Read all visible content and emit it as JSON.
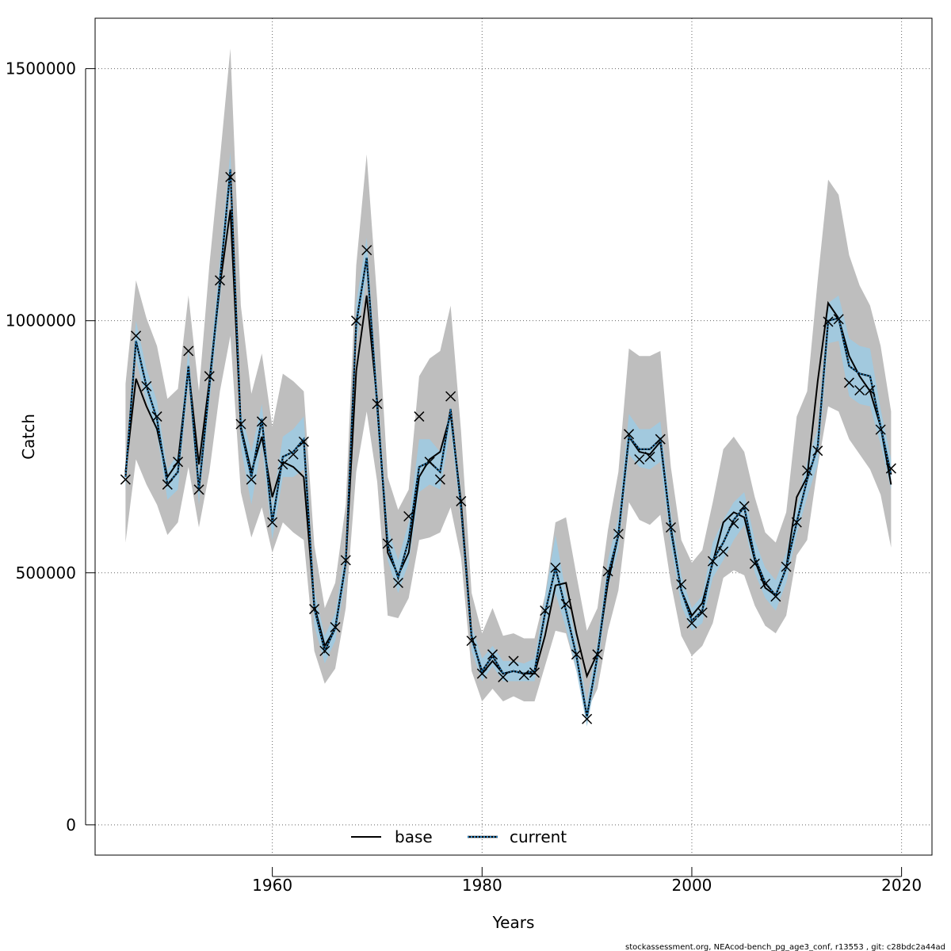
{
  "chart_data": {
    "type": "line",
    "xlabel": "Years",
    "ylabel": "Catch",
    "xlim": [
      1943.1,
      2022.9
    ],
    "ylim": [
      -60000,
      1600000
    ],
    "x_ticks": [
      1960,
      1980,
      2000,
      2020
    ],
    "y_ticks": [
      0,
      500000,
      1000000,
      1500000
    ],
    "x_tick_labels": [
      "1960",
      "1980",
      "2000",
      "2020"
    ],
    "y_tick_labels": [
      "0",
      "500000",
      "1000000",
      "1500000"
    ],
    "grid": true,
    "legend": {
      "placement": "bottom-center",
      "entries": [
        {
          "label": "base",
          "color": "#000000",
          "style": "solid"
        },
        {
          "label": "current",
          "color": "#1f77b4",
          "style": "dotted"
        }
      ]
    },
    "footer": "stockassessment.org, NEAcod-bench_pg_age3_conf, r13553 , git: c28bdc2a44ad",
    "colors": {
      "base_band": "#bebebe",
      "current_band": "#9ecae1",
      "current_line": "#1f77b4",
      "base_line": "#000000",
      "observed_marker": "#000000"
    },
    "years": [
      1946,
      1947,
      1948,
      1949,
      1950,
      1951,
      1952,
      1953,
      1954,
      1955,
      1956,
      1957,
      1958,
      1959,
      1960,
      1961,
      1962,
      1963,
      1964,
      1965,
      1966,
      1967,
      1968,
      1969,
      1970,
      1971,
      1972,
      1973,
      1974,
      1975,
      1976,
      1977,
      1978,
      1979,
      1980,
      1981,
      1982,
      1983,
      1984,
      1985,
      1986,
      1987,
      1988,
      1989,
      1990,
      1991,
      1992,
      1993,
      1994,
      1995,
      1996,
      1997,
      1998,
      1999,
      2000,
      2001,
      2002,
      2003,
      2004,
      2005,
      2006,
      2007,
      2008,
      2009,
      2010,
      2011,
      2012,
      2013,
      2014,
      2015,
      2016,
      2017,
      2018,
      2019
    ],
    "series": [
      {
        "name": "base",
        "values": [
          700000,
          885000,
          830000,
          785000,
          690000,
          720000,
          905000,
          715000,
          880000,
          1070000,
          1220000,
          790000,
          700000,
          770000,
          650000,
          720000,
          710000,
          690000,
          435000,
          355000,
          390000,
          520000,
          900000,
          1050000,
          840000,
          540000,
          495000,
          540000,
          690000,
          725000,
          740000,
          815000,
          640000,
          375000,
          300000,
          325000,
          300000,
          305000,
          300000,
          300000,
          375000,
          475000,
          480000,
          380000,
          295000,
          340000,
          480000,
          575000,
          770000,
          740000,
          735000,
          760000,
          590000,
          465000,
          415000,
          440000,
          520000,
          600000,
          620000,
          610000,
          525000,
          470000,
          455000,
          510000,
          650000,
          690000,
          880000,
          1035000,
          1005000,
          930000,
          890000,
          860000,
          790000,
          675000
        ],
        "lower": [
          560000,
          725000,
          675000,
          635000,
          575000,
          600000,
          710000,
          590000,
          700000,
          860000,
          970000,
          660000,
          570000,
          630000,
          540000,
          600000,
          580000,
          565000,
          345000,
          280000,
          310000,
          430000,
          700000,
          820000,
          680000,
          415000,
          410000,
          450000,
          565000,
          570000,
          580000,
          630000,
          530000,
          305000,
          245000,
          270000,
          245000,
          255000,
          245000,
          245000,
          315000,
          385000,
          380000,
          305000,
          225000,
          270000,
          385000,
          465000,
          640000,
          605000,
          595000,
          615000,
          480000,
          375000,
          335000,
          355000,
          400000,
          490000,
          505000,
          495000,
          435000,
          395000,
          380000,
          415000,
          535000,
          565000,
          710000,
          830000,
          820000,
          765000,
          735000,
          705000,
          655000,
          550000
        ],
        "upper": [
          875000,
          1080000,
          1005000,
          950000,
          845000,
          865000,
          1050000,
          860000,
          1110000,
          1320000,
          1540000,
          1030000,
          855000,
          935000,
          790000,
          895000,
          880000,
          860000,
          555000,
          430000,
          480000,
          635000,
          1110000,
          1330000,
          1040000,
          690000,
          625000,
          665000,
          890000,
          925000,
          940000,
          1030000,
          780000,
          460000,
          380000,
          430000,
          375000,
          380000,
          370000,
          370000,
          455000,
          600000,
          610000,
          495000,
          385000,
          430000,
          585000,
          700000,
          945000,
          930000,
          930000,
          940000,
          710000,
          565000,
          520000,
          545000,
          640000,
          745000,
          770000,
          740000,
          650000,
          580000,
          560000,
          620000,
          810000,
          860000,
          1080000,
          1280000,
          1250000,
          1130000,
          1070000,
          1030000,
          950000,
          820000
        ]
      },
      {
        "name": "current",
        "values": [
          690000,
          960000,
          870000,
          805000,
          675000,
          700000,
          910000,
          665000,
          870000,
          1080000,
          1300000,
          785000,
          690000,
          805000,
          600000,
          730000,
          740000,
          765000,
          430000,
          345000,
          390000,
          520000,
          995000,
          1125000,
          830000,
          555000,
          490000,
          565000,
          710000,
          720000,
          700000,
          825000,
          630000,
          370000,
          305000,
          335000,
          300000,
          305000,
          300000,
          305000,
          420000,
          510000,
          425000,
          335000,
          215000,
          335000,
          495000,
          575000,
          770000,
          745000,
          745000,
          765000,
          585000,
          465000,
          405000,
          425000,
          525000,
          560000,
          605000,
          630000,
          530000,
          480000,
          455000,
          510000,
          600000,
          685000,
          750000,
          1000000,
          1005000,
          910000,
          895000,
          890000,
          790000,
          695000
        ],
        "lower": [
          665000,
          925000,
          840000,
          775000,
          645000,
          665000,
          875000,
          635000,
          835000,
          1040000,
          1265000,
          750000,
          635000,
          755000,
          565000,
          690000,
          690000,
          705000,
          395000,
          320000,
          365000,
          490000,
          955000,
          1085000,
          790000,
          525000,
          460000,
          520000,
          660000,
          675000,
          665000,
          785000,
          605000,
          345000,
          285000,
          315000,
          285000,
          285000,
          285000,
          285000,
          390000,
          460000,
          390000,
          305000,
          195000,
          305000,
          470000,
          545000,
          735000,
          710000,
          705000,
          720000,
          555000,
          435000,
          385000,
          400000,
          490000,
          525000,
          565000,
          595000,
          500000,
          450000,
          425000,
          480000,
          575000,
          650000,
          715000,
          955000,
          960000,
          850000,
          835000,
          830000,
          755000,
          665000
        ],
        "upper": [
          715000,
          1000000,
          905000,
          840000,
          705000,
          735000,
          945000,
          700000,
          905000,
          1120000,
          1335000,
          820000,
          740000,
          835000,
          635000,
          770000,
          785000,
          810000,
          465000,
          375000,
          420000,
          550000,
          1035000,
          1165000,
          870000,
          590000,
          525000,
          600000,
          765000,
          765000,
          740000,
          830000,
          660000,
          395000,
          330000,
          355000,
          325000,
          325000,
          320000,
          330000,
          450000,
          575000,
          460000,
          365000,
          245000,
          365000,
          525000,
          610000,
          815000,
          785000,
          785000,
          800000,
          620000,
          495000,
          430000,
          455000,
          560000,
          605000,
          640000,
          660000,
          565000,
          510000,
          485000,
          540000,
          630000,
          720000,
          785000,
          1035000,
          1050000,
          965000,
          950000,
          945000,
          825000,
          725000
        ]
      }
    ],
    "observed": [
      685000,
      970000,
      870000,
      810000,
      675000,
      720000,
      940000,
      665000,
      890000,
      1080000,
      1285000,
      795000,
      685000,
      800000,
      600000,
      715000,
      735000,
      760000,
      428000,
      345000,
      392000,
      525000,
      1000000,
      1140000,
      835000,
      558000,
      480000,
      612000,
      810000,
      720000,
      685000,
      850000,
      642000,
      365000,
      300000,
      338000,
      293000,
      325000,
      297000,
      302000,
      425000,
      510000,
      438000,
      338000,
      210000,
      338000,
      503000,
      577000,
      775000,
      725000,
      730000,
      765000,
      590000,
      477000,
      400000,
      421000,
      523000,
      542000,
      598000,
      632000,
      518000,
      478000,
      453000,
      512000,
      600000,
      703000,
      742000,
      998000,
      1003000,
      877000,
      862000,
      862000,
      784000,
      707000
    ]
  }
}
